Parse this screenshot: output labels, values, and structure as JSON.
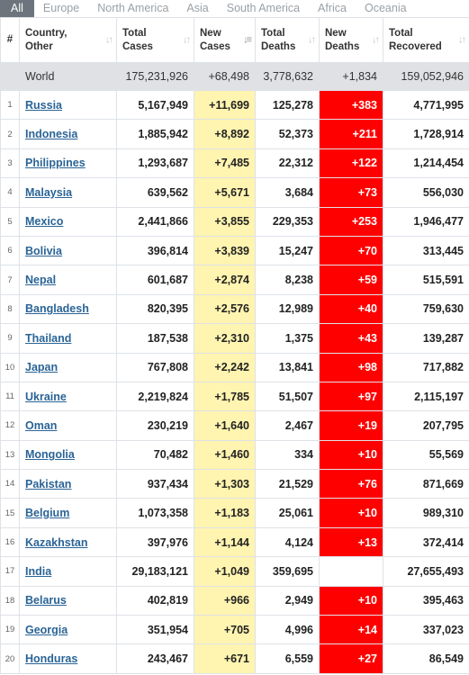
{
  "tabs": [
    "All",
    "Europe",
    "North America",
    "Asia",
    "South America",
    "Africa",
    "Oceania"
  ],
  "active_tab": 0,
  "columns": {
    "idx": "#",
    "country": [
      "Country,",
      "Other"
    ],
    "total_cases": [
      "Total",
      "Cases"
    ],
    "new_cases": [
      "New",
      "Cases"
    ],
    "total_deaths": [
      "Total",
      "Deaths"
    ],
    "new_deaths": [
      "New",
      "Deaths"
    ],
    "total_recovered": [
      "Total",
      "Recovered"
    ]
  },
  "sort_icon": "sort-arrows-icon",
  "world": {
    "name": "World",
    "total_cases": "175,231,926",
    "new_cases": "+68,498",
    "total_deaths": "3,778,632",
    "new_deaths": "+1,834",
    "total_recovered": "159,052,946"
  },
  "rows": [
    {
      "idx": "1",
      "country": "Russia",
      "total_cases": "5,167,949",
      "new_cases": "+11,699",
      "total_deaths": "125,278",
      "new_deaths": "+383",
      "total_recovered": "4,771,995"
    },
    {
      "idx": "2",
      "country": "Indonesia",
      "total_cases": "1,885,942",
      "new_cases": "+8,892",
      "total_deaths": "52,373",
      "new_deaths": "+211",
      "total_recovered": "1,728,914"
    },
    {
      "idx": "3",
      "country": "Philippines",
      "total_cases": "1,293,687",
      "new_cases": "+7,485",
      "total_deaths": "22,312",
      "new_deaths": "+122",
      "total_recovered": "1,214,454"
    },
    {
      "idx": "4",
      "country": "Malaysia",
      "total_cases": "639,562",
      "new_cases": "+5,671",
      "total_deaths": "3,684",
      "new_deaths": "+73",
      "total_recovered": "556,030"
    },
    {
      "idx": "5",
      "country": "Mexico",
      "total_cases": "2,441,866",
      "new_cases": "+3,855",
      "total_deaths": "229,353",
      "new_deaths": "+253",
      "total_recovered": "1,946,477"
    },
    {
      "idx": "6",
      "country": "Bolivia",
      "total_cases": "396,814",
      "new_cases": "+3,839",
      "total_deaths": "15,247",
      "new_deaths": "+70",
      "total_recovered": "313,445"
    },
    {
      "idx": "7",
      "country": "Nepal",
      "total_cases": "601,687",
      "new_cases": "+2,874",
      "total_deaths": "8,238",
      "new_deaths": "+59",
      "total_recovered": "515,591"
    },
    {
      "idx": "8",
      "country": "Bangladesh",
      "total_cases": "820,395",
      "new_cases": "+2,576",
      "total_deaths": "12,989",
      "new_deaths": "+40",
      "total_recovered": "759,630"
    },
    {
      "idx": "9",
      "country": "Thailand",
      "total_cases": "187,538",
      "new_cases": "+2,310",
      "total_deaths": "1,375",
      "new_deaths": "+43",
      "total_recovered": "139,287"
    },
    {
      "idx": "10",
      "country": "Japan",
      "total_cases": "767,808",
      "new_cases": "+2,242",
      "total_deaths": "13,841",
      "new_deaths": "+98",
      "total_recovered": "717,882"
    },
    {
      "idx": "11",
      "country": "Ukraine",
      "total_cases": "2,219,824",
      "new_cases": "+1,785",
      "total_deaths": "51,507",
      "new_deaths": "+97",
      "total_recovered": "2,115,197"
    },
    {
      "idx": "12",
      "country": "Oman",
      "total_cases": "230,219",
      "new_cases": "+1,640",
      "total_deaths": "2,467",
      "new_deaths": "+19",
      "total_recovered": "207,795"
    },
    {
      "idx": "13",
      "country": "Mongolia",
      "total_cases": "70,482",
      "new_cases": "+1,460",
      "total_deaths": "334",
      "new_deaths": "+10",
      "total_recovered": "55,569"
    },
    {
      "idx": "14",
      "country": "Pakistan",
      "total_cases": "937,434",
      "new_cases": "+1,303",
      "total_deaths": "21,529",
      "new_deaths": "+76",
      "total_recovered": "871,669"
    },
    {
      "idx": "15",
      "country": "Belgium",
      "total_cases": "1,073,358",
      "new_cases": "+1,183",
      "total_deaths": "25,061",
      "new_deaths": "+10",
      "total_recovered": "989,310"
    },
    {
      "idx": "16",
      "country": "Kazakhstan",
      "total_cases": "397,976",
      "new_cases": "+1,144",
      "total_deaths": "4,124",
      "new_deaths": "+13",
      "total_recovered": "372,414"
    },
    {
      "idx": "17",
      "country": "India",
      "total_cases": "29,183,121",
      "new_cases": "+1,049",
      "total_deaths": "359,695",
      "new_deaths": "",
      "total_recovered": "27,655,493"
    },
    {
      "idx": "18",
      "country": "Belarus",
      "total_cases": "402,819",
      "new_cases": "+966",
      "total_deaths": "2,949",
      "new_deaths": "+10",
      "total_recovered": "395,463"
    },
    {
      "idx": "19",
      "country": "Georgia",
      "total_cases": "351,954",
      "new_cases": "+705",
      "total_deaths": "4,996",
      "new_deaths": "+14",
      "total_recovered": "337,023"
    },
    {
      "idx": "20",
      "country": "Honduras",
      "total_cases": "243,467",
      "new_cases": "+671",
      "total_deaths": "6,559",
      "new_deaths": "+27",
      "total_recovered": "86,549"
    }
  ],
  "colors": {
    "new_cases_bg": "#fff4b0",
    "new_deaths_bg": "#ff0000",
    "world_row_bg": "#dfe1e4",
    "active_tab_bg": "#6c757d",
    "link": "#2a6496"
  }
}
